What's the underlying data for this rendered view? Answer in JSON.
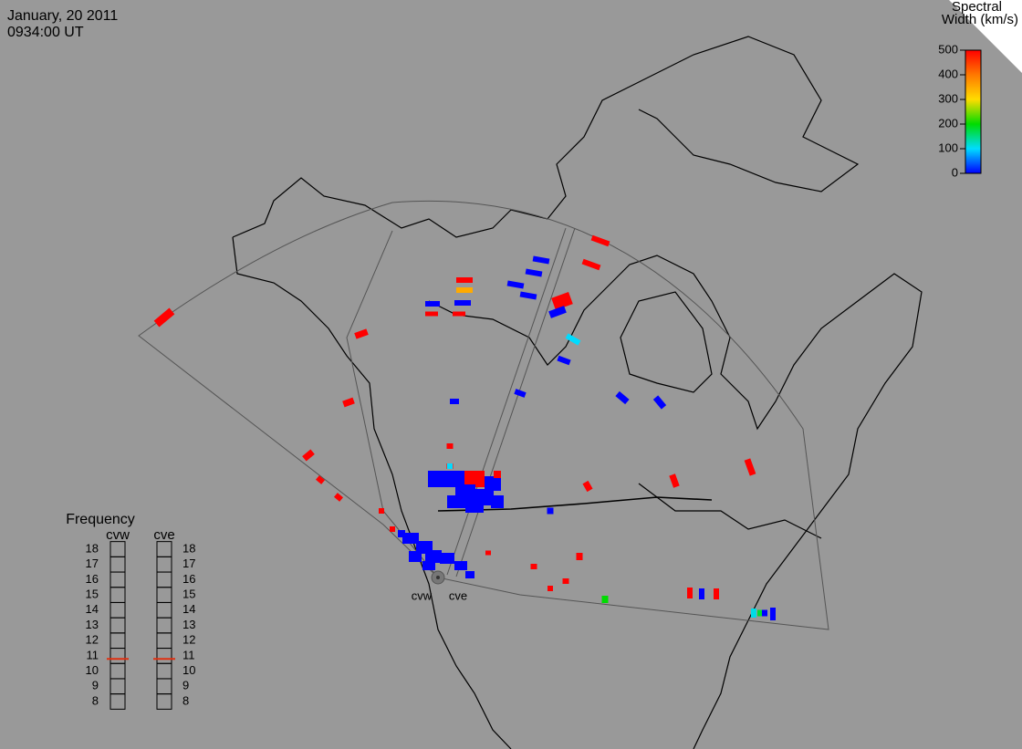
{
  "header": {
    "date": "January, 20 2011",
    "time": "0934:00 UT"
  },
  "color_scale": {
    "title_line1": "Spectral",
    "title_line2": "Width (km/s)",
    "range": [
      0,
      500
    ],
    "ticks": [
      0,
      100,
      200,
      300,
      400,
      500
    ]
  },
  "frequency": {
    "title": "Frequency",
    "radars": [
      {
        "name": "cvw",
        "ticks": [
          8,
          9,
          10,
          11,
          12,
          13,
          14,
          15,
          16,
          17,
          18
        ],
        "value": 10.8
      },
      {
        "name": "cve",
        "ticks": [
          8,
          9,
          10,
          11,
          12,
          13,
          14,
          15,
          16,
          17,
          18
        ],
        "value": 10.8
      }
    ]
  },
  "sites": [
    "cvw",
    "cve"
  ],
  "cells": [
    500,
    500,
    500,
    500,
    350,
    0,
    0,
    500,
    500,
    0,
    0,
    0,
    0,
    500,
    0,
    100,
    0,
    500,
    500,
    0,
    0,
    0,
    0,
    500,
    500,
    500,
    500,
    500,
    500,
    500,
    500,
    0,
    0,
    500,
    0,
    0,
    0,
    0,
    0,
    0,
    0,
    0,
    0,
    0,
    0,
    0,
    0,
    0,
    0,
    500,
    500,
    500,
    500,
    200,
    500,
    0,
    500,
    500,
    110,
    180,
    0,
    500,
    500,
    500,
    0,
    100,
    0
  ]
}
